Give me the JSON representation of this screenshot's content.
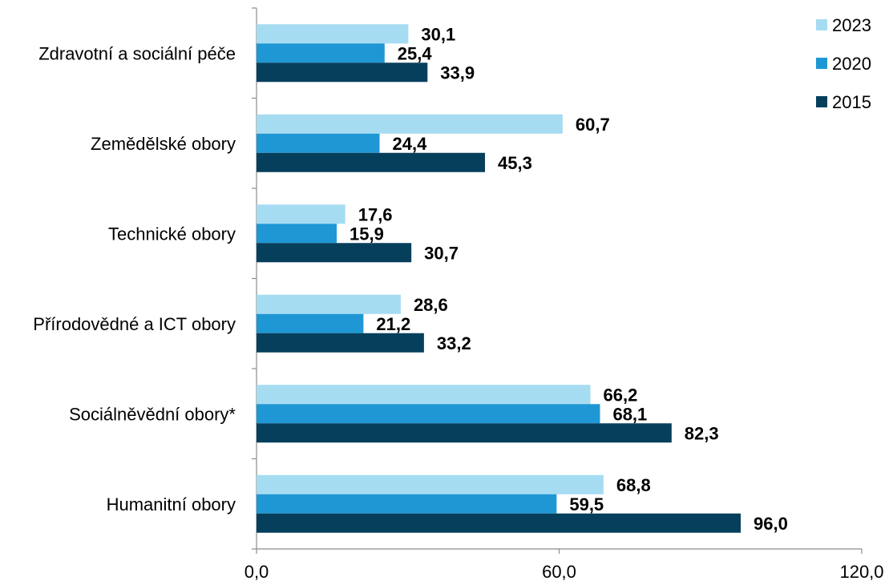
{
  "chart_data": {
    "type": "bar",
    "orientation": "horizontal",
    "categories": [
      "Zdravotní a sociální péče",
      "Zemědělské obory",
      "Technické obory",
      "Přírodovědné a ICT obory",
      "Sociálněvědní obory*",
      "Humanitní obory"
    ],
    "series": [
      {
        "name": "2023",
        "color": "#a6dcf2",
        "values": [
          30.1,
          60.7,
          17.6,
          28.6,
          66.2,
          68.8
        ],
        "labels": [
          "30,1",
          "60,7",
          "17,6",
          "28,6",
          "66,2",
          "68,8"
        ]
      },
      {
        "name": "2020",
        "color": "#1f97d4",
        "values": [
          25.4,
          24.4,
          15.9,
          21.2,
          68.1,
          59.5
        ],
        "labels": [
          "25,4",
          "24,4",
          "15,9",
          "21,2",
          "68,1",
          "59,5"
        ]
      },
      {
        "name": "2015",
        "color": "#063f5c",
        "values": [
          33.9,
          45.3,
          30.7,
          33.2,
          82.3,
          96.0
        ],
        "labels": [
          "33,9",
          "45,3",
          "30,7",
          "33,2",
          "82,3",
          "96,0"
        ]
      }
    ],
    "xlim": [
      0,
      120
    ],
    "xticks": [
      0,
      60,
      120
    ],
    "xtick_labels": [
      "0,0",
      "60,0",
      "120,0"
    ],
    "title": "",
    "xlabel": "",
    "ylabel": "",
    "grid": false,
    "legend_position": "top-right"
  }
}
